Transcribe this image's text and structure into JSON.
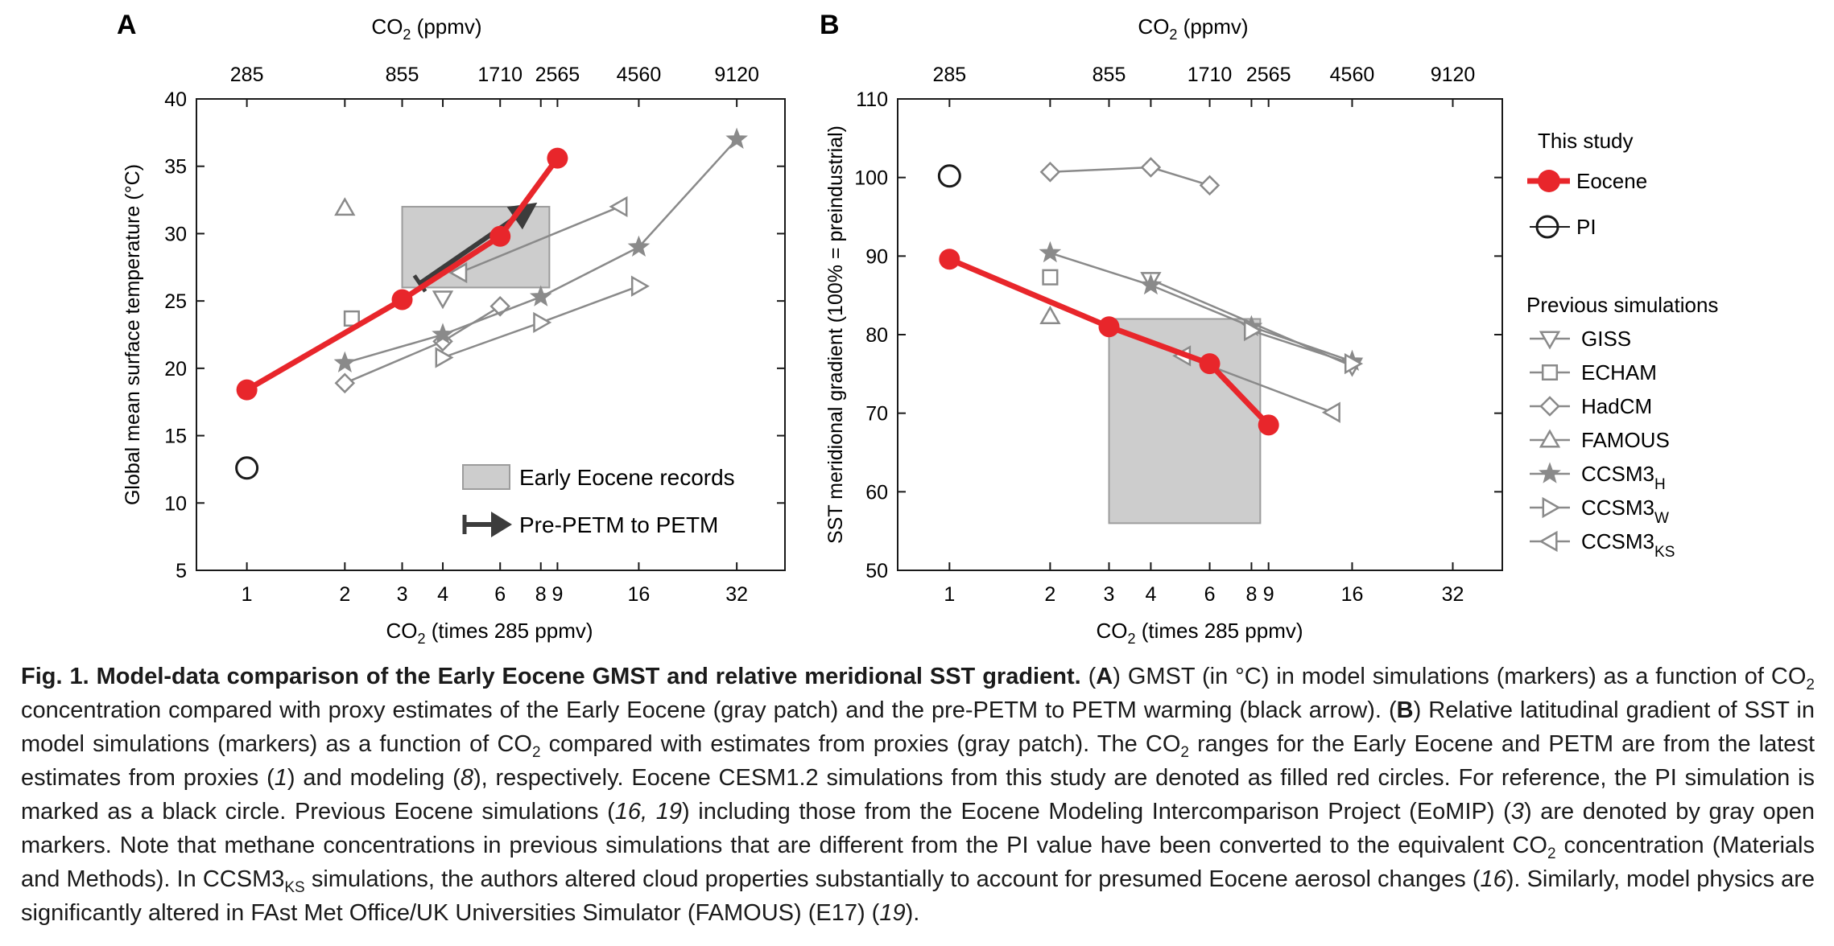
{
  "colors": {
    "eocene": "#e8262b",
    "previous": "#8a8a8a",
    "patch": "#cdcdcd",
    "patch_edge": "#9c9c9c",
    "arrow": "#3c3c3c",
    "axis": "#1a1a1a"
  },
  "chart_data": [
    {
      "type": "line",
      "panel": "A",
      "top_axis_title": "CO2 (ppmv)",
      "top_ticks": [
        "285",
        "855",
        "1710",
        "2565",
        "4560",
        "9120"
      ],
      "xlabel": "CO2 (times 285 ppmv)",
      "x_scale": "log2",
      "xticks": [
        1,
        2,
        3,
        4,
        6,
        8,
        9,
        16,
        32
      ],
      "xlim": [
        0.7,
        45
      ],
      "ylabel": "Global mean surface temperature (°C)",
      "ylim": [
        5,
        40
      ],
      "yticks": [
        5,
        10,
        15,
        20,
        25,
        30,
        35,
        40
      ],
      "records_patch": {
        "x": [
          3,
          8.5
        ],
        "y": [
          26,
          32
        ],
        "label": "Early Eocene records"
      },
      "arrow": {
        "from": [
          3.4,
          26.3
        ],
        "to": [
          7.8,
          32.3
        ],
        "label": "Pre-PETM to PETM"
      },
      "this_study": {
        "name": "Eocene",
        "x": [
          1,
          3,
          6,
          9
        ],
        "y": [
          18.4,
          25.1,
          29.8,
          35.6
        ]
      },
      "pi": {
        "name": "PI",
        "x": [
          1
        ],
        "y": [
          12.6
        ]
      },
      "series": [
        {
          "name": "GISS",
          "marker": "triangle-down",
          "x": [
            4
          ],
          "y": [
            25.2
          ]
        },
        {
          "name": "ECHAM",
          "marker": "square",
          "x": [
            2.1
          ],
          "y": [
            23.7
          ]
        },
        {
          "name": "HadCM",
          "marker": "diamond",
          "x": [
            2,
            4,
            6
          ],
          "y": [
            18.9,
            22.0,
            24.6
          ]
        },
        {
          "name": "FAMOUS",
          "marker": "triangle-up",
          "x": [
            2
          ],
          "y": [
            31.9
          ]
        },
        {
          "name": "CCSM3_H",
          "marker": "star",
          "x": [
            2,
            4,
            8,
            16,
            32
          ],
          "y": [
            20.4,
            22.5,
            25.3,
            29.0,
            37.0
          ]
        },
        {
          "name": "CCSM3_W",
          "marker": "triangle-right",
          "x": [
            4,
            8,
            16
          ],
          "y": [
            20.8,
            23.4,
            26.1
          ]
        },
        {
          "name": "CCSM3_KS",
          "marker": "triangle-left",
          "x": [
            4.5,
            14
          ],
          "y": [
            27.1,
            32.0
          ]
        }
      ]
    },
    {
      "type": "line",
      "panel": "B",
      "top_axis_title": "CO2 (ppmv)",
      "top_ticks": [
        "285",
        "855",
        "1710",
        "2565",
        "4560",
        "9120"
      ],
      "xlabel": "CO2 (times 285 ppmv)",
      "x_scale": "log2",
      "xticks": [
        1,
        2,
        3,
        4,
        6,
        8,
        9,
        16,
        32
      ],
      "xlim": [
        0.7,
        45
      ],
      "ylabel": "SST meridional gradient (100% = preindustrial)",
      "ylim": [
        50,
        110
      ],
      "yticks": [
        50,
        60,
        70,
        80,
        90,
        100,
        110
      ],
      "records_patch": {
        "x": [
          3,
          8.5
        ],
        "y": [
          56,
          82
        ]
      },
      "this_study": {
        "name": "Eocene",
        "x": [
          1,
          3,
          6,
          9
        ],
        "y": [
          89.6,
          81.0,
          76.3,
          68.5
        ]
      },
      "pi": {
        "name": "PI",
        "x": [
          1
        ],
        "y": [
          100.2
        ]
      },
      "series": [
        {
          "name": "GISS",
          "marker": "triangle-down",
          "x": [
            4,
            16
          ],
          "y": [
            87.0,
            76.0
          ]
        },
        {
          "name": "ECHAM",
          "marker": "square",
          "x": [
            2
          ],
          "y": [
            87.3
          ]
        },
        {
          "name": "HadCM",
          "marker": "diamond",
          "x": [
            2,
            4,
            6
          ],
          "y": [
            100.7,
            101.3,
            99.0
          ]
        },
        {
          "name": "FAMOUS",
          "marker": "triangle-up",
          "x": [
            2
          ],
          "y": [
            82.3
          ]
        },
        {
          "name": "CCSM3_H",
          "marker": "star",
          "x": [
            2,
            4,
            8,
            16
          ],
          "y": [
            90.4,
            86.3,
            81.0,
            76.6
          ]
        },
        {
          "name": "CCSM3_W",
          "marker": "triangle-right",
          "x": [
            8,
            16
          ],
          "y": [
            80.5,
            76.3
          ]
        },
        {
          "name": "CCSM3_KS",
          "marker": "triangle-left",
          "x": [
            5,
            14
          ],
          "y": [
            77.3,
            70.1
          ]
        }
      ]
    }
  ],
  "panel_labels": {
    "a": "A",
    "b": "B"
  },
  "legend_a": {
    "records": "Early Eocene records",
    "arrow": "Pre-PETM to PETM"
  },
  "legend_b": {
    "this_study_title": "This study",
    "eocene": "Eocene",
    "pi": "PI",
    "previous_title": "Previous simulations",
    "giss": "GISS",
    "echam": "ECHAM",
    "hadcm": "HadCM",
    "famous": "FAMOUS",
    "ccsm3": "CCSM3",
    "sub_h": "H",
    "sub_w": "W",
    "sub_ks": "KS"
  },
  "axis_text": {
    "co2": "CO",
    "sub2": "2",
    "top_unit": " (ppmv)",
    "bottom_unit": " (times 285 ppmv)",
    "ylabel_a": "Global mean surface temperature (°C)",
    "ylabel_b": "SST meridional gradient (100% = preindustrial)"
  },
  "caption": {
    "fig_label": "Fig. 1.",
    "title": "Model-data comparison of the Early Eocene GMST and relative meridional SST gradient.",
    "a_label": "A",
    "b_label": "B",
    "co2": "CO",
    "sub2": "2",
    "ks": "KS",
    "t1": "GMST (in °C) in model simulations (markers) as a function of ",
    "t2": " concentration compared with proxy estimates of the Early Eocene (gray patch) and the pre-PETM to PETM warming (black arrow). (",
    "t3": ") Relative latitudinal gradient of SST in model simulations (markers) as a function of ",
    "t4": " compared with estimates from proxies (gray patch). The ",
    "t5": " ranges for the Early Eocene and PETM are from the latest estimates from proxies (",
    "ref1": "1",
    "t6": ") and modeling (",
    "ref8": "8",
    "t7": "), respectively. Eocene CESM1.2 simulations from this study are denoted as filled red circles. For reference, the PI simulation is marked as a black circle. Previous Eocene simulations (",
    "ref1619": "16, 19",
    "t8": ") including those from the Eocene Modeling Intercomparison Project (EoMIP) (",
    "ref3": "3",
    "t9": ") are denoted by gray open markers. Note that methane concentrations in previous simulations that are different from the PI value have been converted to the equivalent ",
    "t10": " concentration (Materials and Methods). In CCSM3",
    "t11": " simulations, the authors altered cloud properties substantially to account for presumed Eocene aerosol changes (",
    "ref16": "16",
    "t12": "). Similarly, model physics are significantly altered in FAst Met Office/UK Universities Simulator (FAMOUS) (E17) (",
    "ref19": "19",
    "t13": ")."
  }
}
